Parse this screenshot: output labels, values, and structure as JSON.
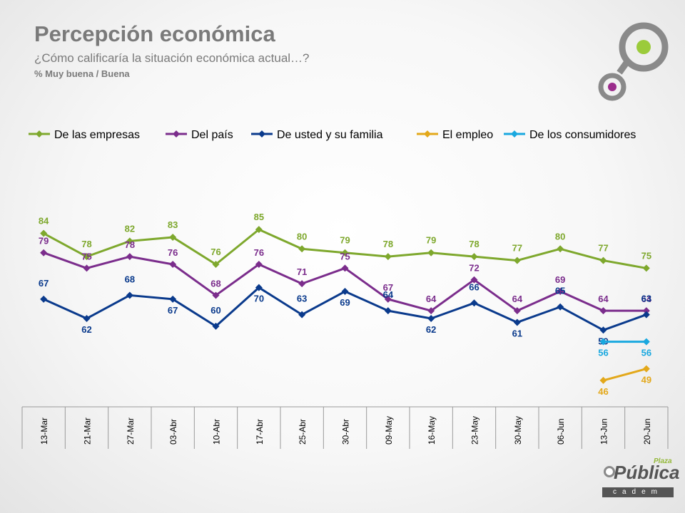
{
  "header": {
    "title": "Percepción económica",
    "subtitle": "¿Cómo calificaría la situación económica actual…?",
    "note": "% Muy buena / Buena"
  },
  "brand": {
    "plaza": "Plaza",
    "publica": "Pública",
    "cadem": "cadem"
  },
  "colors": {
    "green": "#7ea82d",
    "purple": "#7b2d8c",
    "navy": "#0a3a8c",
    "orange": "#e3a81a",
    "cyan": "#19a8df",
    "logo_ring": "#8a8a8a",
    "logo_green": "#9bcb3b",
    "logo_purple": "#9b2d8c"
  },
  "chart_data": {
    "type": "line",
    "categories": [
      "13-Mar",
      "21-Mar",
      "27-Mar",
      "03-Abr",
      "10-Abr",
      "17-Abr",
      "25-Abr",
      "30-Abr",
      "09-May",
      "16-May",
      "23-May",
      "30-May",
      "06-Jun",
      "13-Jun",
      "20-Jun"
    ],
    "ylim": [
      40,
      90
    ],
    "legend_position": "top",
    "series": [
      {
        "name": "De las empresas",
        "color": "#7ea82d",
        "values": [
          84,
          78,
          82,
          83,
          76,
          85,
          80,
          79,
          78,
          79,
          78,
          77,
          80,
          77,
          75
        ]
      },
      {
        "name": "Del país",
        "color": "#7b2d8c",
        "values": [
          79,
          75,
          78,
          76,
          68,
          76,
          71,
          75,
          67,
          64,
          72,
          64,
          69,
          64,
          64
        ]
      },
      {
        "name": "De usted y su familia",
        "color": "#0a3a8c",
        "values": [
          67,
          62,
          68,
          67,
          60,
          70,
          63,
          69,
          64,
          62,
          66,
          61,
          65,
          59,
          63
        ]
      },
      {
        "name": "El empleo",
        "color": "#e3a81a",
        "values": [
          null,
          null,
          null,
          null,
          null,
          null,
          null,
          null,
          null,
          null,
          null,
          null,
          null,
          46,
          49
        ]
      },
      {
        "name": "De los consumidores",
        "color": "#19a8df",
        "values": [
          null,
          null,
          null,
          null,
          null,
          null,
          null,
          null,
          null,
          null,
          null,
          null,
          null,
          56,
          56
        ]
      }
    ]
  }
}
